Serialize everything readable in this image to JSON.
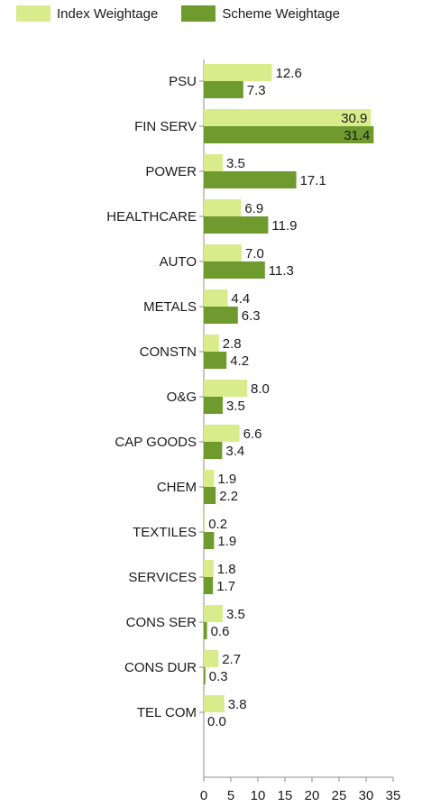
{
  "chart_data": {
    "type": "bar",
    "orientation": "horizontal",
    "categories": [
      "PSU",
      "FIN SERV",
      "POWER",
      "HEALTHCARE",
      "AUTO",
      "METALS",
      "CONSTN",
      "O&G",
      "CAP GOODS",
      "CHEM",
      "TEXTILES",
      "SERVICES",
      "CONS SER",
      "CONS DUR",
      "TEL COM"
    ],
    "series": [
      {
        "name": "Index Weightage",
        "color": "#d8ec8c",
        "values": [
          12.6,
          30.9,
          3.5,
          6.9,
          7.0,
          4.4,
          2.8,
          8.0,
          6.6,
          1.9,
          0.2,
          1.8,
          3.5,
          2.7,
          3.8
        ],
        "value_labels": [
          "12.6",
          "30.9",
          "3.5",
          "6.9",
          "7.0",
          "4.4",
          "2.8",
          "8.0",
          "6.6",
          "1.9",
          "0.2",
          "1.8",
          "3.5",
          "2.7",
          "3.8"
        ]
      },
      {
        "name": "Scheme Weightage",
        "color": "#6e9a2e",
        "values": [
          7.3,
          31.4,
          17.1,
          11.9,
          11.3,
          6.3,
          4.2,
          3.5,
          3.4,
          2.2,
          1.9,
          1.7,
          0.6,
          0.3,
          0.0
        ],
        "value_labels": [
          "7.3",
          "31.4",
          "17.1",
          "11.9",
          "11.3",
          "6.3",
          "4.2",
          "3.5",
          "3.4",
          "2.2",
          "1.9",
          "1.7",
          "0.6",
          "0.3",
          "0.0"
        ]
      }
    ],
    "xlim": [
      0,
      35
    ],
    "x_ticks": [
      "0",
      "5",
      "10",
      "15",
      "20",
      "25",
      "30",
      "35"
    ],
    "title": "",
    "xlabel": "",
    "ylabel": "",
    "grid": false,
    "legend_position": "top-left"
  }
}
